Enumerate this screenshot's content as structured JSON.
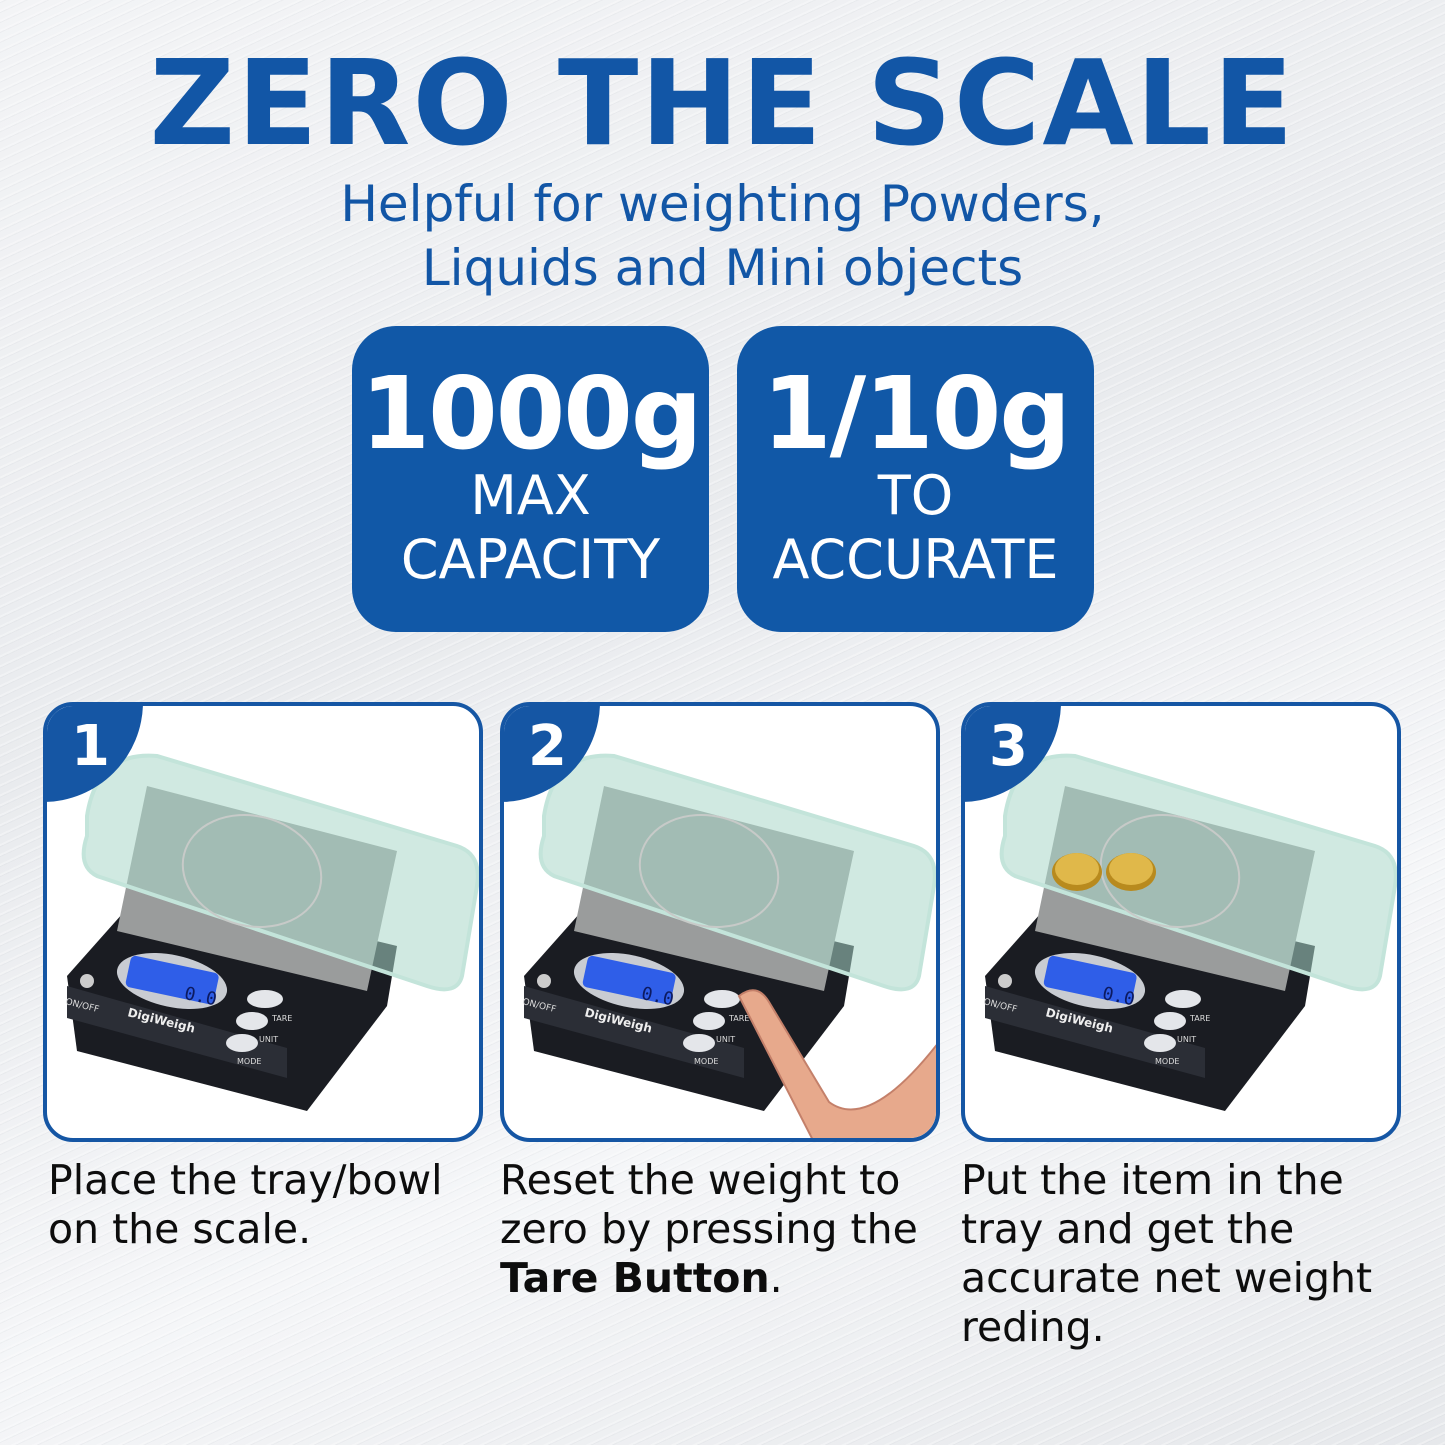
{
  "title": "ZERO THE SCALE",
  "subtitle": [
    "Helpful for weighting Powders,",
    "Liquids and Mini objects"
  ],
  "badges": [
    {
      "value": "1000g",
      "line1": "MAX",
      "line2": "CAPACITY"
    },
    {
      "value": "1/10g",
      "line1": "TO",
      "line2": "ACCURATE"
    }
  ],
  "scale_labels": {
    "brand": "DigiWeigh",
    "display": "0.0",
    "on_off": "ON/OFF",
    "tare": "TARE",
    "unit": "UNIT",
    "mode": "MODE"
  },
  "steps": [
    {
      "number": "1",
      "text": "Place the tray/bowl on the scale.",
      "bold": "",
      "after": ""
    },
    {
      "number": "2",
      "text": "Reset the weight to zero by pressing the ",
      "bold": "Tare Button",
      "after": "."
    },
    {
      "number": "3",
      "text": "Put the item in the tray and get the accurate net weight reding.",
      "bold": "",
      "after": ""
    }
  ],
  "colors": {
    "brand_blue": "#1158a7",
    "display_blue": "#2f5ee8"
  }
}
